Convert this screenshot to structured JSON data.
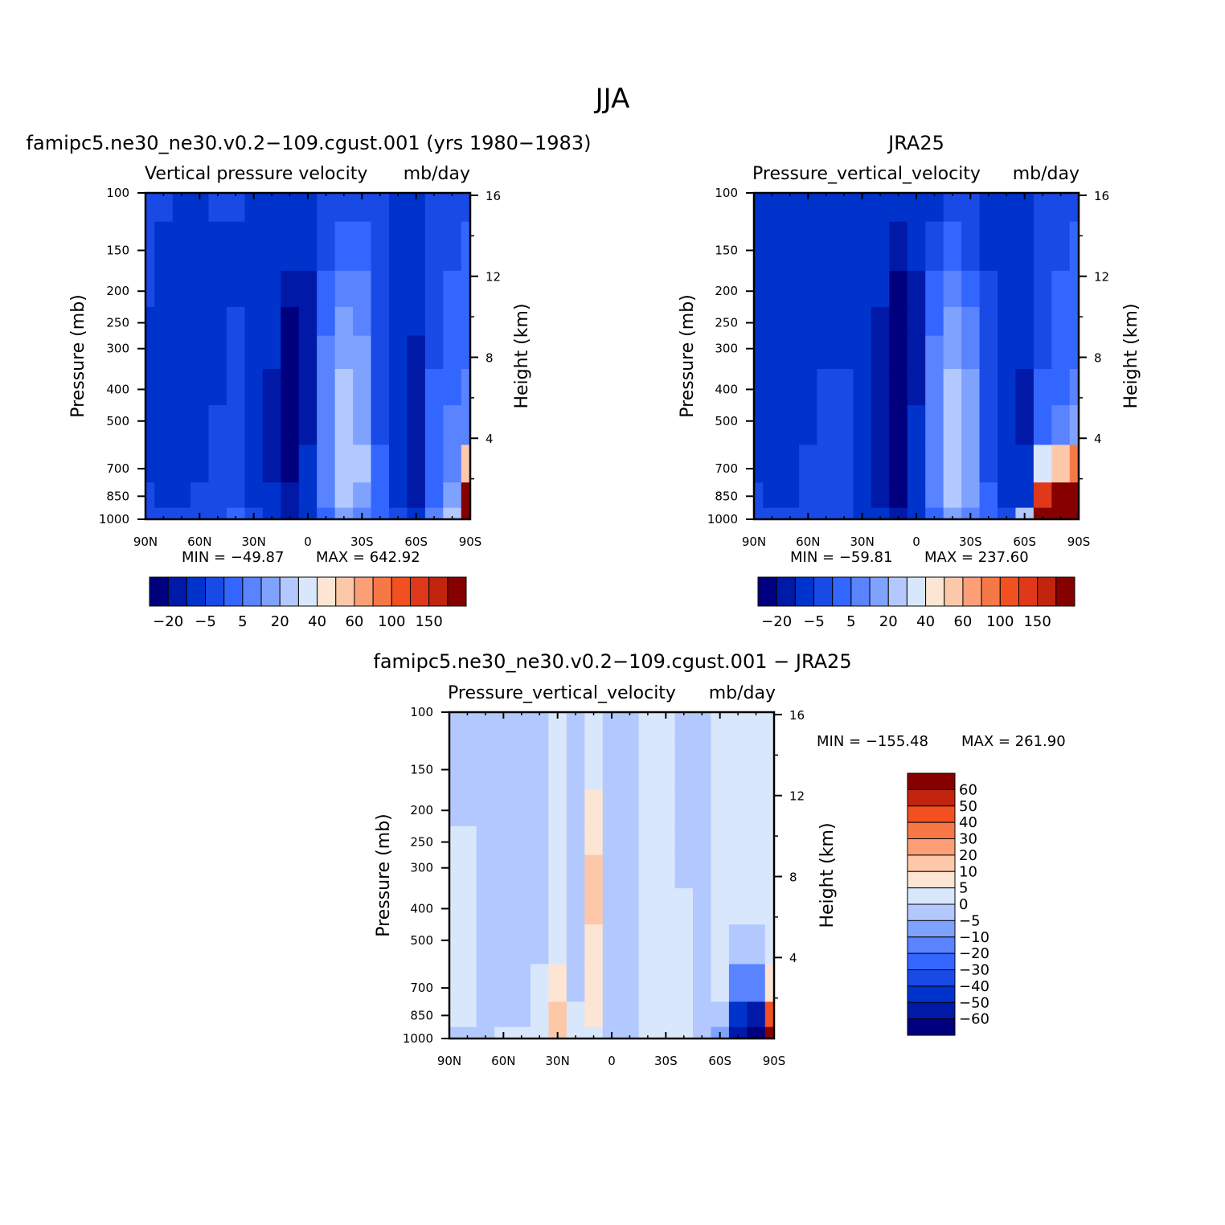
{
  "figure_title": "JJA",
  "colors": {
    "scale_main": [
      "#00007f",
      "#0019a6",
      "#0033cc",
      "#1a4ae6",
      "#3366ff",
      "#5983ff",
      "#80a2ff",
      "#b3c8ff",
      "#d9e7fd",
      "#fde5d3",
      "#fdc8a8",
      "#fc9f76",
      "#f67847",
      "#f25020",
      "#e0381a",
      "#c2250e",
      "#870000"
    ],
    "scale_diff": [
      "#00007f",
      "#0019a6",
      "#0033cc",
      "#1a4ae6",
      "#3366ff",
      "#5983ff",
      "#80a2ff",
      "#b3c8ff",
      "#d9e7fd",
      "#fde5d3",
      "#fdc8a8",
      "#fc9f76",
      "#f67847",
      "#f25020",
      "#c2250e",
      "#870000"
    ]
  },
  "chart_data": [
    {
      "type": "heatmap",
      "panel": "model",
      "title": "famipc5.ne30_ne30.v0.2−109.cgust.001 (yrs 1980−1983)",
      "subtitle_left": "Vertical pressure velocity",
      "subtitle_right": "mb/day",
      "ylabel": "Pressure (mb)",
      "ylabel_right": "Height (km)",
      "x_ticks": [
        "90N",
        "60N",
        "30N",
        "0",
        "30S",
        "60S",
        "90S"
      ],
      "x_values": [
        90,
        60,
        30,
        0,
        -30,
        -60,
        -90
      ],
      "y_ticks": [
        "100",
        "150",
        "200",
        "250",
        "300",
        "400",
        "500",
        "700",
        "850",
        "1000"
      ],
      "y_values": [
        100,
        150,
        200,
        250,
        300,
        400,
        500,
        700,
        850,
        1000
      ],
      "y2_ticks": [
        "16",
        "12",
        "8",
        "4"
      ],
      "y2_values": [
        16,
        12,
        8,
        4
      ],
      "ylim": [
        1000,
        100
      ],
      "y_scale": "log",
      "min_label": "MIN = −49.87",
      "max_label": "MAX = 642.92",
      "colorbar_labels": [
        "−20",
        "−5",
        "5",
        "20",
        "40",
        "60",
        "100",
        "150"
      ],
      "field": [
        {
          "lat": 90,
          "v": [
            -10,
            -10,
            -10,
            -12,
            -12,
            -12,
            -12,
            -12,
            -10,
            -8
          ]
        },
        {
          "lat": 80,
          "v": [
            -10,
            -12,
            -12,
            -12,
            -12,
            -12,
            -14,
            -14,
            -12,
            -10
          ]
        },
        {
          "lat": 70,
          "v": [
            -12,
            -14,
            -16,
            -16,
            -16,
            -14,
            -14,
            -15,
            -12,
            -10
          ]
        },
        {
          "lat": 60,
          "v": [
            -12,
            -14,
            -16,
            -16,
            -15,
            -14,
            -13,
            -12,
            -10,
            -9
          ]
        },
        {
          "lat": 50,
          "v": [
            -10,
            -12,
            -12,
            -12,
            -11,
            -11,
            -10,
            -9,
            -8,
            -7
          ]
        },
        {
          "lat": 40,
          "v": [
            -10,
            -11,
            -11,
            -10,
            -10,
            -9,
            -9,
            -8,
            -6,
            -5
          ]
        },
        {
          "lat": 30,
          "v": [
            -11,
            -12,
            -12,
            -12,
            -12,
            -11,
            -12,
            -13,
            -12,
            -9
          ]
        },
        {
          "lat": 20,
          "v": [
            -12,
            -14,
            -17,
            -19,
            -20,
            -21,
            -22,
            -23,
            -20,
            -14
          ]
        },
        {
          "lat": 10,
          "v": [
            -14,
            -18,
            -35,
            -45,
            -49,
            -49,
            -48,
            -45,
            -38,
            -25
          ]
        },
        {
          "lat": 0,
          "v": [
            -12,
            -14,
            -22,
            -25,
            -24,
            -22,
            -21,
            -20,
            -17,
            -12
          ]
        },
        {
          "lat": -10,
          "v": [
            -10,
            -8,
            -5,
            -2,
            0,
            1,
            1,
            1,
            1,
            -1
          ]
        },
        {
          "lat": -20,
          "v": [
            -9,
            -5,
            2,
            6,
            8,
            10,
            12,
            15,
            14,
            6
          ]
        },
        {
          "lat": -30,
          "v": [
            -8,
            -4,
            0,
            3,
            5,
            6,
            8,
            10,
            9,
            4
          ]
        },
        {
          "lat": -40,
          "v": [
            -10,
            -9,
            -8,
            -7,
            -6,
            -6,
            -6,
            -5,
            -4,
            -3
          ]
        },
        {
          "lat": -50,
          "v": [
            -12,
            -13,
            -14,
            -14,
            -14,
            -14,
            -13,
            -12,
            -11,
            -10
          ]
        },
        {
          "lat": -60,
          "v": [
            -12,
            -15,
            -18,
            -20,
            -22,
            -24,
            -26,
            -28,
            -25,
            -18
          ]
        },
        {
          "lat": -70,
          "v": [
            -10,
            -9,
            -8,
            -7,
            -6,
            -5,
            -4,
            -3,
            -2,
            0
          ]
        },
        {
          "lat": -80,
          "v": [
            -8,
            -6,
            -5,
            -4,
            -3,
            -2,
            0,
            2,
            5,
            10
          ]
        },
        {
          "lat": -90,
          "v": [
            -6,
            -5,
            -4,
            -3,
            -2,
            0,
            2,
            40,
            150,
            643
          ]
        }
      ]
    },
    {
      "type": "heatmap",
      "panel": "obs",
      "title": "JRA25",
      "subtitle_left": "Pressure_vertical_velocity",
      "subtitle_right": "mb/day",
      "ylabel": "Pressure (mb)",
      "ylabel_right": "Height (km)",
      "x_ticks": [
        "90N",
        "60N",
        "30N",
        "0",
        "30S",
        "60S",
        "90S"
      ],
      "x_values": [
        90,
        60,
        30,
        0,
        -30,
        -60,
        -90
      ],
      "y_ticks": [
        "100",
        "150",
        "200",
        "250",
        "300",
        "400",
        "500",
        "700",
        "850",
        "1000"
      ],
      "y_values": [
        100,
        150,
        200,
        250,
        300,
        400,
        500,
        700,
        850,
        1000
      ],
      "y2_ticks": [
        "16",
        "12",
        "8",
        "4"
      ],
      "y2_values": [
        16,
        12,
        8,
        4
      ],
      "ylim": [
        1000,
        100
      ],
      "y_scale": "log",
      "min_label": "MIN = −59.81",
      "max_label": "MAX = 237.60",
      "colorbar_labels": [
        "−20",
        "−5",
        "5",
        "20",
        "40",
        "60",
        "100",
        "150"
      ],
      "field": [
        {
          "lat": 90,
          "v": [
            -12,
            -12,
            -12,
            -12,
            -12,
            -12,
            -12,
            -12,
            -10,
            -6
          ]
        },
        {
          "lat": 80,
          "v": [
            -12,
            -14,
            -14,
            -14,
            -14,
            -14,
            -13,
            -12,
            -11,
            -8
          ]
        },
        {
          "lat": 70,
          "v": [
            -12,
            -14,
            -16,
            -16,
            -16,
            -15,
            -14,
            -13,
            -12,
            -9
          ]
        },
        {
          "lat": 60,
          "v": [
            -12,
            -14,
            -14,
            -14,
            -13,
            -12,
            -11,
            -10,
            -9,
            -8
          ]
        },
        {
          "lat": 50,
          "v": [
            -12,
            -12,
            -12,
            -12,
            -11,
            -10,
            -10,
            -9,
            -8,
            -8
          ]
        },
        {
          "lat": 40,
          "v": [
            -12,
            -12,
            -12,
            -11,
            -11,
            -10,
            -10,
            -9,
            -8,
            -7
          ]
        },
        {
          "lat": 30,
          "v": [
            -14,
            -14,
            -14,
            -14,
            -14,
            -14,
            -15,
            -16,
            -15,
            -12
          ]
        },
        {
          "lat": 20,
          "v": [
            -16,
            -18,
            -20,
            -22,
            -22,
            -24,
            -26,
            -28,
            -25,
            -18
          ]
        },
        {
          "lat": 10,
          "v": [
            -18,
            -25,
            -45,
            -55,
            -59,
            -59,
            -58,
            -55,
            -48,
            -30
          ]
        },
        {
          "lat": 0,
          "v": [
            -14,
            -16,
            -22,
            -24,
            -24,
            -22,
            -20,
            -20,
            -17,
            -12
          ]
        },
        {
          "lat": -10,
          "v": [
            -12,
            -8,
            -4,
            -2,
            0,
            1,
            1,
            1,
            0,
            -2
          ]
        },
        {
          "lat": -20,
          "v": [
            -10,
            -5,
            2,
            6,
            9,
            12,
            14,
            16,
            13,
            6
          ]
        },
        {
          "lat": -30,
          "v": [
            -10,
            -6,
            -2,
            2,
            4,
            6,
            7,
            8,
            6,
            2
          ]
        },
        {
          "lat": -40,
          "v": [
            -12,
            -11,
            -10,
            -9,
            -8,
            -7,
            -7,
            -6,
            -5,
            -4
          ]
        },
        {
          "lat": -50,
          "v": [
            -13,
            -14,
            -14,
            -14,
            -14,
            -14,
            -13,
            -12,
            -11,
            -10
          ]
        },
        {
          "lat": -60,
          "v": [
            -12,
            -14,
            -16,
            -18,
            -20,
            -22,
            -24,
            -20,
            -12,
            10
          ]
        },
        {
          "lat": -70,
          "v": [
            -10,
            -9,
            -8,
            -7,
            -6,
            -5,
            -2,
            20,
            100,
            200
          ]
        },
        {
          "lat": -80,
          "v": [
            -8,
            -6,
            -5,
            -4,
            -3,
            -2,
            2,
            40,
            150,
            237
          ]
        },
        {
          "lat": -90,
          "v": [
            -6,
            -5,
            -4,
            -3,
            -2,
            0,
            5,
            60,
            150,
            220
          ]
        }
      ]
    },
    {
      "type": "heatmap",
      "panel": "diff",
      "title": "famipc5.ne30_ne30.v0.2−109.cgust.001 − JRA25",
      "subtitle_left": "Pressure_vertical_velocity",
      "subtitle_right": "mb/day",
      "ylabel": "Pressure (mb)",
      "ylabel_right": "Height (km)",
      "x_ticks": [
        "90N",
        "60N",
        "30N",
        "0",
        "30S",
        "60S",
        "90S"
      ],
      "x_values": [
        90,
        60,
        30,
        0,
        -30,
        -60,
        -90
      ],
      "y_ticks": [
        "100",
        "150",
        "200",
        "250",
        "300",
        "400",
        "500",
        "700",
        "850",
        "1000"
      ],
      "y_values": [
        100,
        150,
        200,
        250,
        300,
        400,
        500,
        700,
        850,
        1000
      ],
      "y2_ticks": [
        "16",
        "12",
        "8",
        "4"
      ],
      "y2_values": [
        16,
        12,
        8,
        4
      ],
      "ylim": [
        1000,
        100
      ],
      "y_scale": "log",
      "min_label": "MIN = −155.48",
      "max_label": "MAX = 261.90",
      "colorbar_labels": [
        "60",
        "50",
        "40",
        "30",
        "20",
        "10",
        "5",
        "0",
        "−5",
        "−10",
        "−20",
        "−30",
        "−40",
        "−50",
        "−60"
      ],
      "field": [
        {
          "lat": 90,
          "v": [
            -2,
            -2,
            -2,
            2,
            2,
            2,
            2,
            2,
            1,
            -3
          ]
        },
        {
          "lat": 80,
          "v": [
            -2,
            -2,
            -1,
            2,
            2,
            2,
            2,
            1,
            0,
            -3
          ]
        },
        {
          "lat": 70,
          "v": [
            -2,
            -2,
            -3,
            -3,
            -3,
            -3,
            -3,
            -3,
            -2,
            -4
          ]
        },
        {
          "lat": 60,
          "v": [
            -2,
            -2,
            -3,
            -3,
            -3,
            -3,
            -3,
            -3,
            -2,
            1
          ]
        },
        {
          "lat": 50,
          "v": [
            -2,
            -2,
            -3,
            -3,
            -3,
            -3,
            -3,
            -3,
            -2,
            1
          ]
        },
        {
          "lat": 40,
          "v": [
            -2,
            -2,
            -2,
            -2,
            -2,
            -2,
            -2,
            2,
            3,
            4
          ]
        },
        {
          "lat": 30,
          "v": [
            2,
            2,
            2,
            2,
            2,
            2,
            3,
            6,
            10,
            14
          ]
        },
        {
          "lat": 20,
          "v": [
            -2,
            -2,
            -2,
            -3,
            -4,
            -4,
            -3,
            -2,
            2,
            3
          ]
        },
        {
          "lat": 10,
          "v": [
            2,
            3,
            5,
            9,
            12,
            12,
            9,
            6,
            7,
            4
          ]
        },
        {
          "lat": 0,
          "v": [
            -2,
            -2,
            -2,
            -2,
            -2,
            -2,
            -2,
            -1,
            -1,
            -1
          ]
        },
        {
          "lat": -10,
          "v": [
            -2,
            -2,
            -2,
            -2,
            -2,
            -2,
            -2,
            -1,
            -1,
            -1
          ]
        },
        {
          "lat": -20,
          "v": [
            2,
            2,
            2,
            2,
            2,
            2,
            2,
            2,
            2,
            1
          ]
        },
        {
          "lat": -30,
          "v": [
            2,
            2,
            2,
            2,
            2,
            2,
            2,
            2,
            2,
            1
          ]
        },
        {
          "lat": -40,
          "v": [
            -2,
            -2,
            -2,
            -2,
            -2,
            2,
            2,
            2,
            2,
            1
          ]
        },
        {
          "lat": -50,
          "v": [
            -2,
            -2,
            -2,
            -2,
            -2,
            -2,
            -2,
            -2,
            -2,
            -2
          ]
        },
        {
          "lat": -60,
          "v": [
            2,
            2,
            2,
            2,
            2,
            2,
            2,
            2,
            -4,
            -8
          ]
        },
        {
          "lat": -70,
          "v": [
            2,
            2,
            2,
            2,
            2,
            2,
            -3,
            -15,
            -45,
            -60
          ]
        },
        {
          "lat": -80,
          "v": [
            2,
            2,
            2,
            2,
            2,
            2,
            -4,
            -20,
            -60,
            -150
          ]
        },
        {
          "lat": -90,
          "v": [
            2,
            2,
            2,
            2,
            2,
            2,
            2,
            6,
            40,
            261
          ]
        }
      ]
    }
  ]
}
